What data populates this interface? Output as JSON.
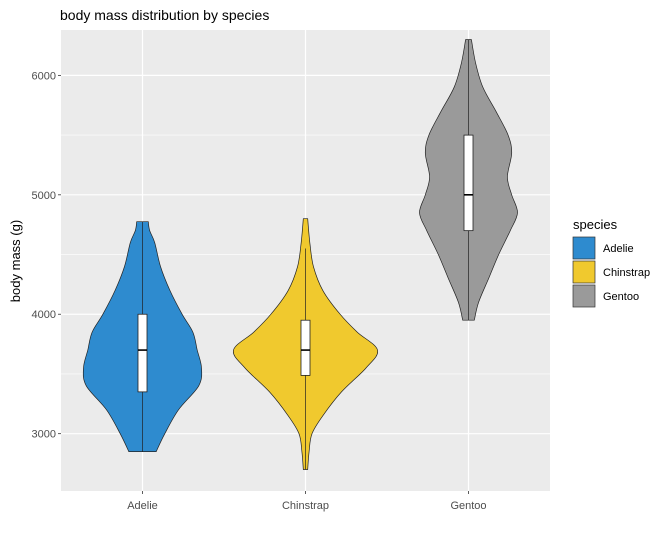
{
  "chart_data": {
    "type": "violin",
    "title": "body mass distribution by species",
    "xlabel": "",
    "ylabel": "body mass (g)",
    "ylim": [
      2520,
      6380
    ],
    "y_ticks": [
      3000,
      4000,
      5000,
      6000
    ],
    "grid": true,
    "legend": {
      "title": "species",
      "position": "right"
    },
    "categories": [
      "Adelie",
      "Chinstrap",
      "Gentoo"
    ],
    "series": [
      {
        "name": "Adelie",
        "color": "#2E8BCF",
        "min": 2850,
        "max": 4775,
        "q1": 3350,
        "median": 3700,
        "q3": 4000,
        "whisker_low": 2850,
        "whisker_high": 4775,
        "density": [
          [
            2850,
            0.19
          ],
          [
            3000,
            0.31
          ],
          [
            3200,
            0.5
          ],
          [
            3400,
            0.78
          ],
          [
            3550,
            0.82
          ],
          [
            3700,
            0.76
          ],
          [
            3850,
            0.7
          ],
          [
            4000,
            0.55
          ],
          [
            4200,
            0.38
          ],
          [
            4400,
            0.25
          ],
          [
            4600,
            0.17
          ],
          [
            4700,
            0.1
          ],
          [
            4775,
            0.08
          ]
        ]
      },
      {
        "name": "Chinstrap",
        "color": "#F0C92E",
        "min": 2700,
        "max": 4800,
        "q1": 3488,
        "median": 3700,
        "q3": 3950,
        "whisker_low": 2700,
        "whisker_high": 4550,
        "density": [
          [
            2700,
            0.03
          ],
          [
            2850,
            0.05
          ],
          [
            3000,
            0.09
          ],
          [
            3150,
            0.24
          ],
          [
            3350,
            0.5
          ],
          [
            3550,
            0.84
          ],
          [
            3700,
            1.0
          ],
          [
            3850,
            0.72
          ],
          [
            4000,
            0.48
          ],
          [
            4200,
            0.24
          ],
          [
            4400,
            0.11
          ],
          [
            4600,
            0.06
          ],
          [
            4800,
            0.03
          ]
        ]
      },
      {
        "name": "Gentoo",
        "color": "#9A9A9A",
        "min": 3950,
        "max": 6300,
        "q1": 4700,
        "median": 5000,
        "q3": 5500,
        "whisker_low": 3950,
        "whisker_high": 6300,
        "density": [
          [
            3950,
            0.08
          ],
          [
            4100,
            0.14
          ],
          [
            4300,
            0.28
          ],
          [
            4500,
            0.42
          ],
          [
            4700,
            0.58
          ],
          [
            4850,
            0.68
          ],
          [
            5000,
            0.6
          ],
          [
            5150,
            0.54
          ],
          [
            5350,
            0.6
          ],
          [
            5500,
            0.55
          ],
          [
            5700,
            0.38
          ],
          [
            5900,
            0.2
          ],
          [
            6100,
            0.1
          ],
          [
            6300,
            0.04
          ]
        ]
      }
    ]
  }
}
